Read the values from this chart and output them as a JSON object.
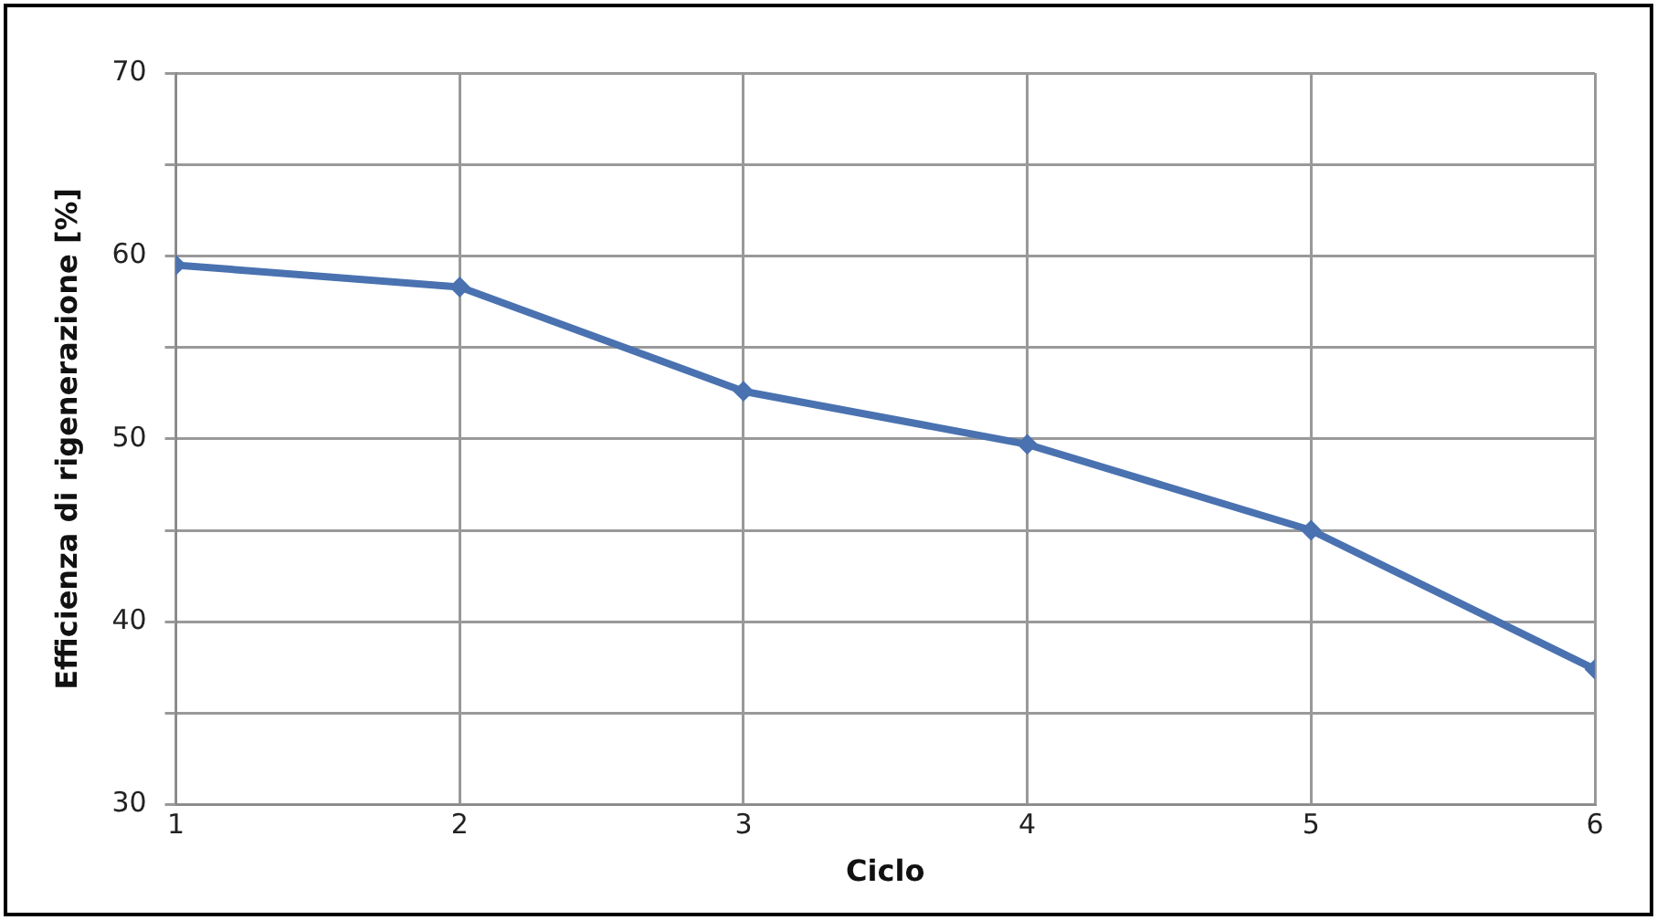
{
  "chart_data": {
    "type": "line",
    "xlabel": "Ciclo",
    "ylabel": "Efficienza di rigenerazione [%]",
    "x": [
      1,
      2,
      3,
      4,
      5,
      6
    ],
    "series": [
      {
        "color": "#4a72b0",
        "values": [
          59.5,
          58.3,
          52.6,
          49.7,
          45.0,
          37.4
        ]
      }
    ],
    "xlim": [
      1,
      6
    ],
    "xticks": [
      1,
      2,
      3,
      4,
      5,
      6
    ],
    "ylim": [
      30,
      70
    ],
    "yticks": [
      30,
      {
        "value": 35,
        "label": null
      },
      40,
      {
        "value": 45,
        "label": null
      },
      50,
      {
        "value": 55,
        "label": null
      },
      60,
      {
        "value": 65,
        "label": null
      },
      70
    ],
    "grid": true,
    "legend": false,
    "marker": "diamond",
    "line_style": "solid"
  }
}
